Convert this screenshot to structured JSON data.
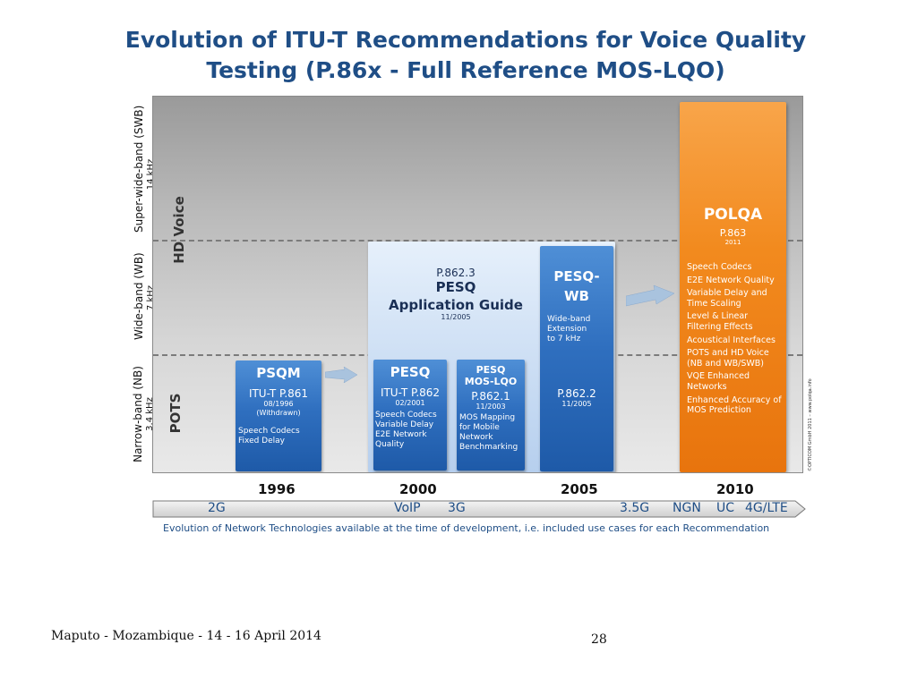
{
  "title": {
    "line1": "Evolution of ITU-T Recommendations for Voice Quality",
    "line2": "Testing (P.86x - Full Reference MOS-LQO)"
  },
  "bands": [
    {
      "name": "Super-wide-band (SWB)",
      "freq": "14 kHz"
    },
    {
      "name": "Wide-band (WB)",
      "freq": "7 kHz"
    },
    {
      "name": "Narrow-band (NB)",
      "freq": "3.4 kHz"
    }
  ],
  "band_groups": {
    "hd": "HD Voice",
    "pots": "POTS"
  },
  "boxes": {
    "psqm": {
      "name": "PSQM",
      "rec": "ITU-T P.861",
      "date": "08/1996",
      "note": "(Withdrawn)",
      "desc": [
        "Speech Codecs",
        "Fixed Delay"
      ]
    },
    "guide": {
      "rec": "P.862.3",
      "name": "PESQ",
      "sub": "Application Guide",
      "date": "11/2005"
    },
    "pesq": {
      "name": "PESQ",
      "rec": "ITU-T P.862",
      "date": "02/2001",
      "desc": [
        "Speech Codecs",
        "Variable Delay",
        "E2E Network",
        "Quality"
      ]
    },
    "pesq_lqo": {
      "name1": "PESQ",
      "name2": "MOS-LQO",
      "rec": "P.862.1",
      "date": "11/2003",
      "desc": [
        "MOS Mapping",
        "for Mobile",
        "Network",
        "Benchmarking"
      ]
    },
    "pesq_wb": {
      "name1": "PESQ-",
      "name2": "WB",
      "desc": [
        "Wide-band",
        "Extension",
        "to 7 kHz"
      ],
      "rec": "P.862.2",
      "date": "11/2005"
    },
    "polqa": {
      "name": "POLQA",
      "rec": "P.863",
      "date": "2011",
      "features": [
        "Speech Codecs",
        "E2E Network Quality",
        "Variable Delay and Time Scaling",
        "Level & Linear Filtering Effects",
        "Acoustical Interfaces",
        "POTS and HD Voice (NB and WB/SWB)",
        "VQE Enhanced Networks",
        "Enhanced Accuracy of MOS Prediction"
      ]
    }
  },
  "copyright": "©OPTICOM GmbH 2011 – www.polqa.info",
  "years": [
    "1996",
    "2000",
    "2005",
    "2010"
  ],
  "technologies": [
    "2G",
    "VoIP",
    "3G",
    "3.5G",
    "NGN",
    "UC",
    "4G/LTE"
  ],
  "caption": "Evolution of Network Technologies available at the time of development, i.e. included use cases for each Recommendation",
  "footer": {
    "left": "Maputo - Mozambique - 14 - 16 April 2014",
    "page": "28"
  },
  "colors": {
    "title": "#1f4e86",
    "blue_box": "#2f6fbf",
    "polqa": "#f28a1e"
  }
}
